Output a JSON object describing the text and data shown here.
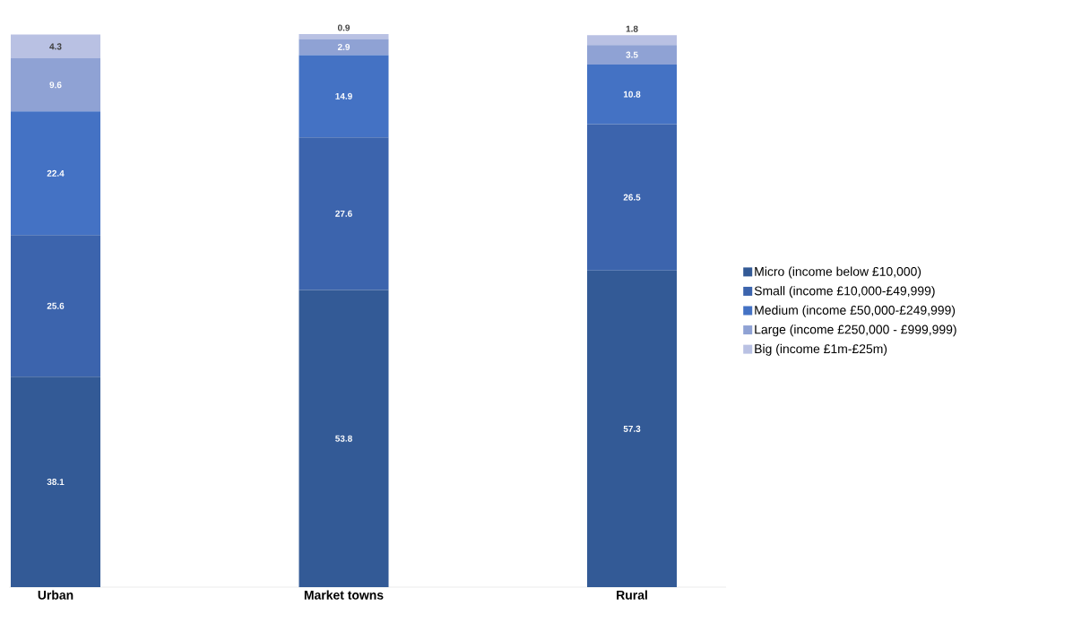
{
  "chart_data": {
    "type": "bar",
    "stacked": true,
    "data_labels": true,
    "legend": "right",
    "categories": [
      "Urban",
      "Market towns",
      "Rural"
    ],
    "series": [
      {
        "name": "Micro (income below £10,000)",
        "color": "#335a96",
        "values": [
          38.1,
          53.8,
          57.3
        ]
      },
      {
        "name": "Small (income £10,000-£49,999)",
        "color": "#3c64ad",
        "values": [
          25.6,
          27.6,
          26.5
        ]
      },
      {
        "name": "Medium (income £50,000-£249,999)",
        "color": "#4472c4",
        "values": [
          22.4,
          14.9,
          10.8
        ]
      },
      {
        "name": "Large (income £250,000 - £999,999)",
        "color": "#8fa2d4",
        "values": [
          9.6,
          2.9,
          3.5
        ]
      },
      {
        "name": "Big (income £1m-£25m)",
        "color": "#b9c1e3",
        "values": [
          4.3,
          0.9,
          1.8
        ]
      }
    ]
  }
}
